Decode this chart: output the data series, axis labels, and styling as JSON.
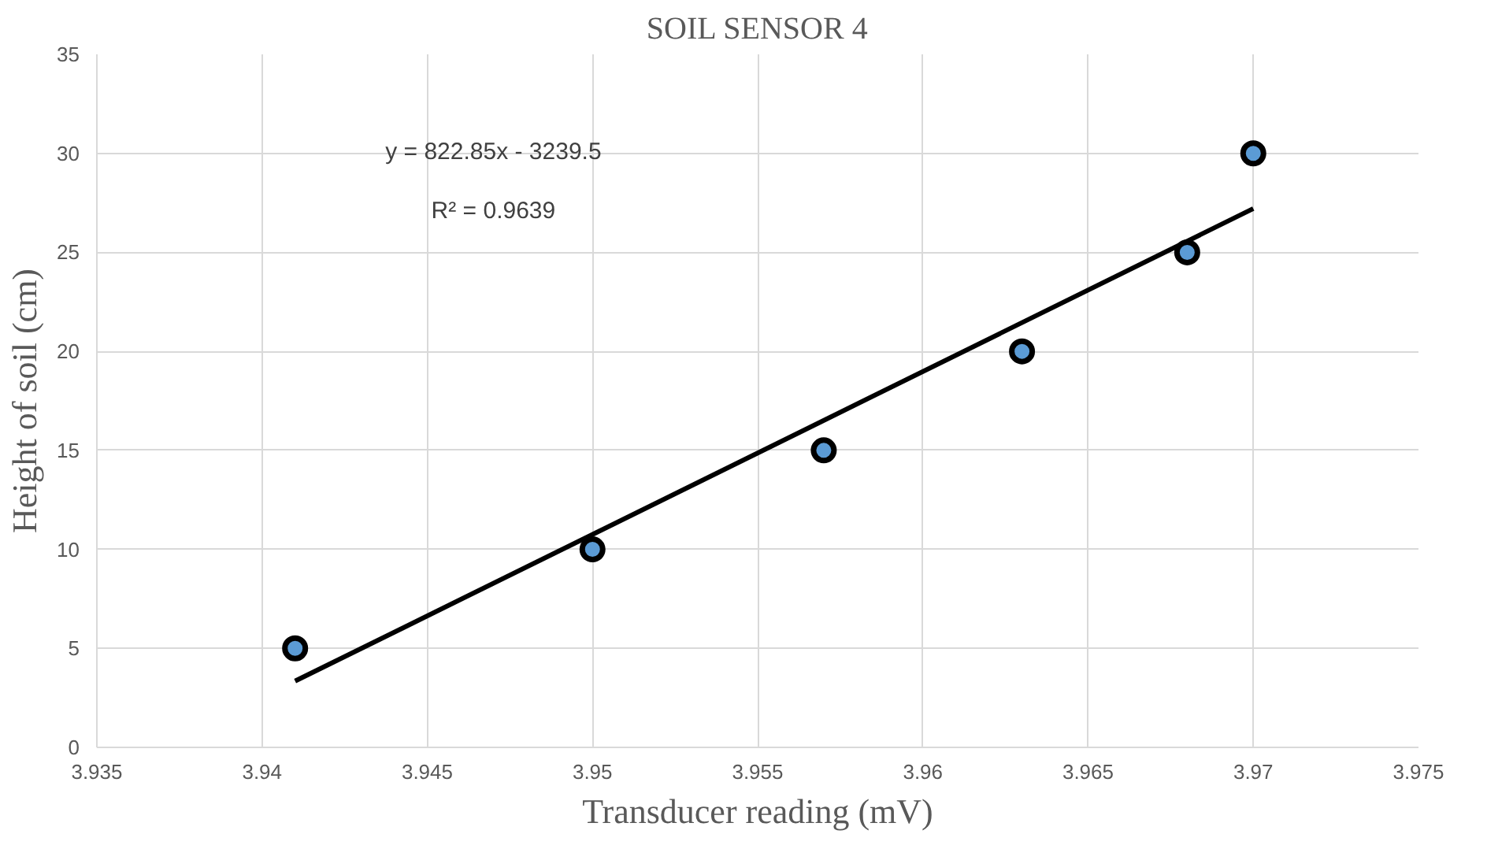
{
  "chart_data": {
    "type": "scatter",
    "title": "SOIL SENSOR 4",
    "xlabel": "Transducer reading (mV)",
    "ylabel": "Height of soil (cm)",
    "x": [
      3.941,
      3.95,
      3.957,
      3.963,
      3.968,
      3.97
    ],
    "series": [
      {
        "color": "#5b9bd5",
        "marker": "circle",
        "values": [
          5,
          10,
          15,
          20,
          25,
          30
        ]
      },
      {
        "type": "line",
        "color": "#000000",
        "x": [
          3.941,
          3.97
        ],
        "values": [
          3.35,
          27.21
        ]
      }
    ],
    "xlim": [
      3.935,
      3.975
    ],
    "xticks": [
      3.935,
      3.94,
      3.945,
      3.95,
      3.955,
      3.96,
      3.965,
      3.97,
      3.975
    ],
    "ylim": [
      0,
      35
    ],
    "yticks": [
      0,
      5,
      10,
      15,
      20,
      25,
      30,
      35
    ],
    "grid": true,
    "annotations": [
      "y = 822.85x - 3239.5",
      "R² = 0.9639"
    ]
  }
}
